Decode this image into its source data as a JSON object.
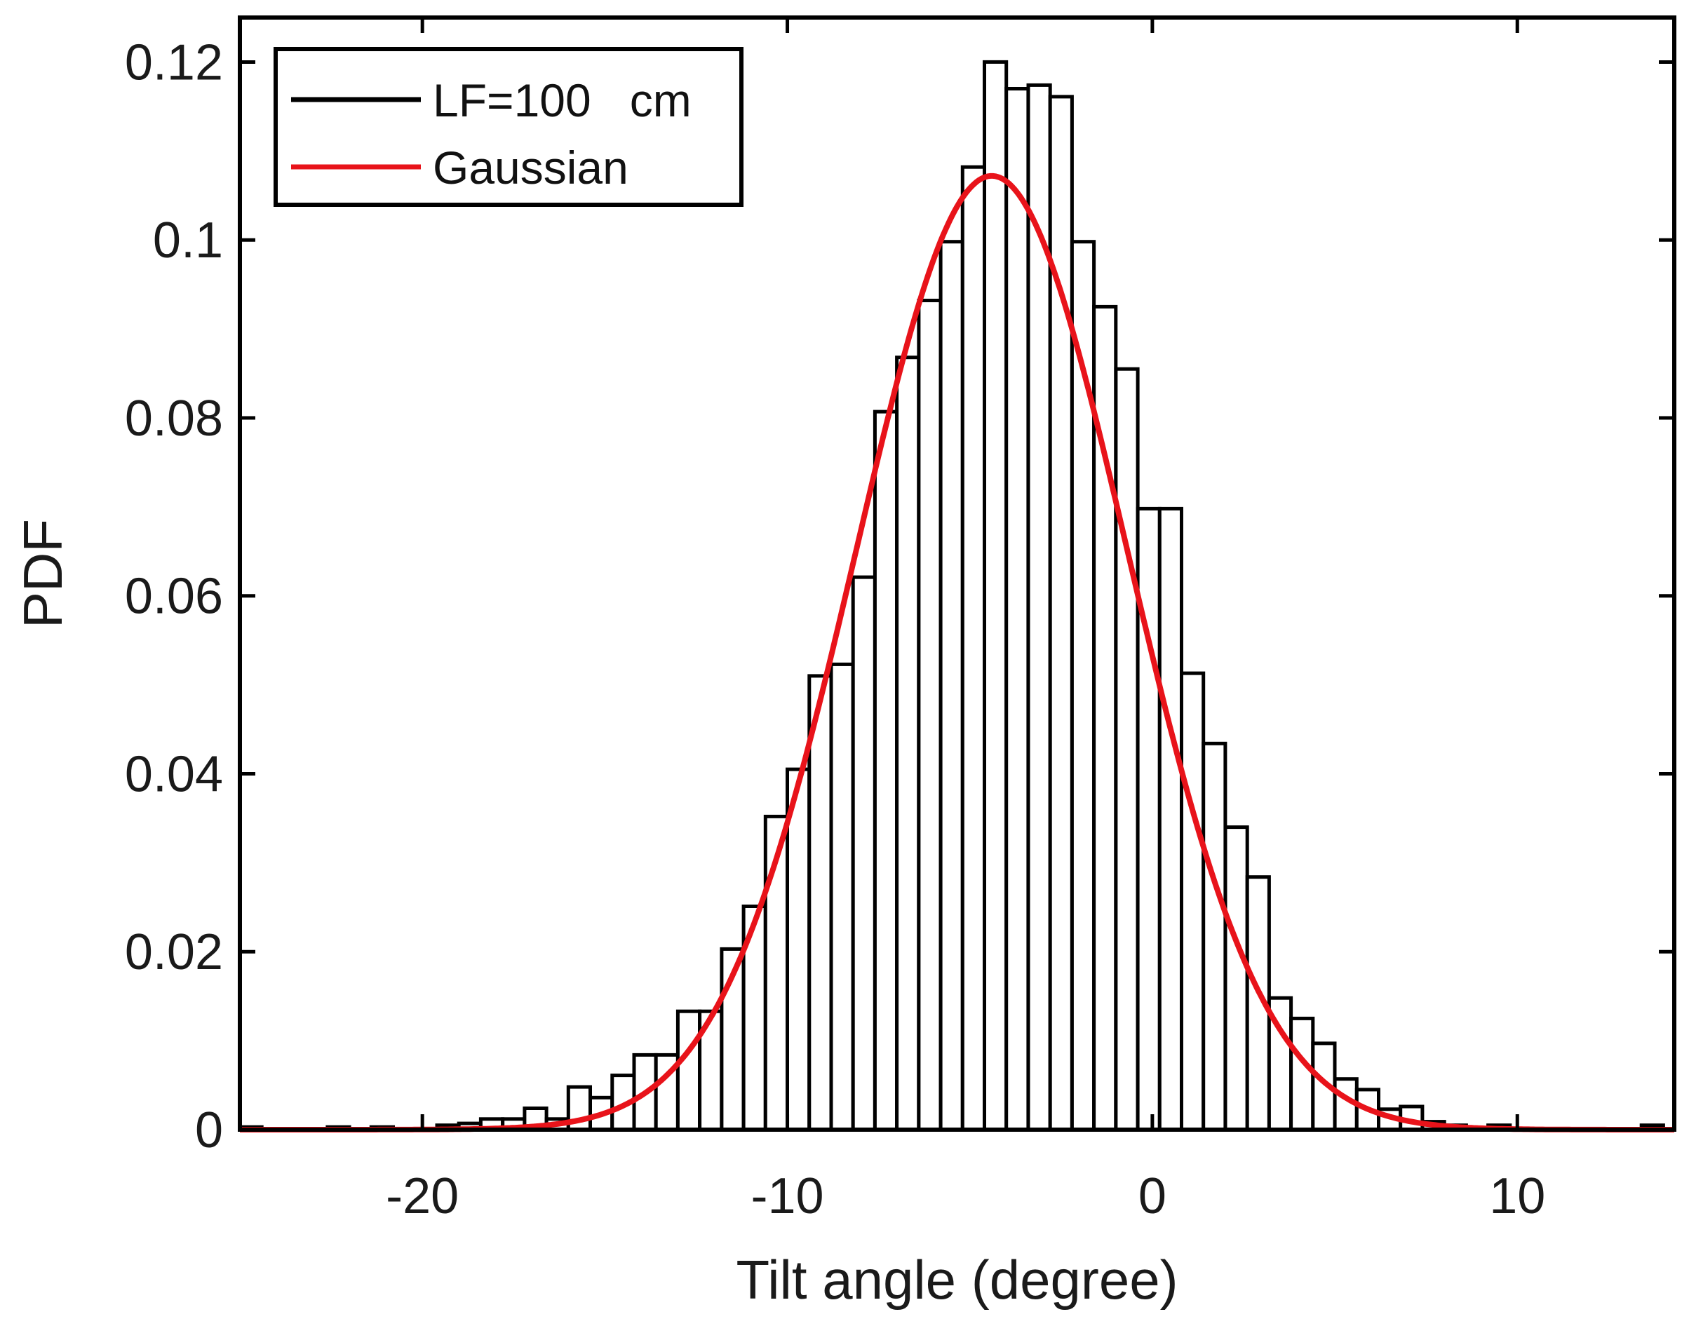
{
  "chart_data": {
    "type": "bar",
    "title": "",
    "xlabel": "Tilt angle (degree)",
    "ylabel": "PDF",
    "xlim": [
      -25,
      14.3
    ],
    "ylim": [
      0,
      0.125
    ],
    "xticks": [
      -20,
      -10,
      0,
      10
    ],
    "xtick_labels": [
      "-20",
      "-10",
      "0",
      "10"
    ],
    "yticks": [
      0,
      0.02,
      0.04,
      0.06,
      0.08,
      0.1,
      0.12
    ],
    "ytick_labels": [
      "0",
      "0.02",
      "0.04",
      "0.06",
      "0.08",
      "0.1",
      "0.12"
    ],
    "grid": false,
    "legend_position": "top-left",
    "series": [
      {
        "name": "LF=100   cm",
        "kind": "histogram",
        "color": "#000000",
        "bin_width": 0.6,
        "bin_lefts": [
          -25.0,
          -22.6,
          -21.4,
          -19.6,
          -19.0,
          -18.4,
          -17.8,
          -17.2,
          -16.6,
          -16.0,
          -15.4,
          -14.8,
          -14.2,
          -13.6,
          -13.0,
          -12.4,
          -11.8,
          -11.2,
          -10.6,
          -10.0,
          -9.4,
          -8.8,
          -8.2,
          -7.6,
          -7.0,
          -6.4,
          -5.8,
          -5.2,
          -4.6,
          -4.0,
          -3.4,
          -2.8,
          -2.2,
          -1.6,
          -1.0,
          -0.4,
          0.2,
          0.8,
          1.4,
          2.0,
          2.6,
          3.2,
          3.8,
          4.4,
          5.0,
          5.6,
          6.2,
          6.8,
          7.4,
          8.0,
          9.2,
          13.4
        ],
        "values": [
          0.0003,
          0.0003,
          0.0003,
          0.0005,
          0.0007,
          0.0012,
          0.0012,
          0.0024,
          0.0012,
          0.0048,
          0.0036,
          0.0061,
          0.0084,
          0.0084,
          0.0133,
          0.0133,
          0.0203,
          0.0251,
          0.0352,
          0.0405,
          0.051,
          0.0523,
          0.0621,
          0.0807,
          0.0868,
          0.0932,
          0.0998,
          0.1082,
          0.12,
          0.117,
          0.1174,
          0.1161,
          0.0998,
          0.0925,
          0.0855,
          0.0698,
          0.0698,
          0.0513,
          0.0434,
          0.034,
          0.0284,
          0.0148,
          0.0125,
          0.0097,
          0.0057,
          0.0045,
          0.0023,
          0.0026,
          0.0009,
          0.0005,
          0.0005,
          0.0005
        ]
      },
      {
        "name": "Gaussian",
        "kind": "line",
        "color": "#e8131a",
        "mean": -4.4,
        "sigma": 3.72,
        "peak": 0.1072
      }
    ]
  }
}
